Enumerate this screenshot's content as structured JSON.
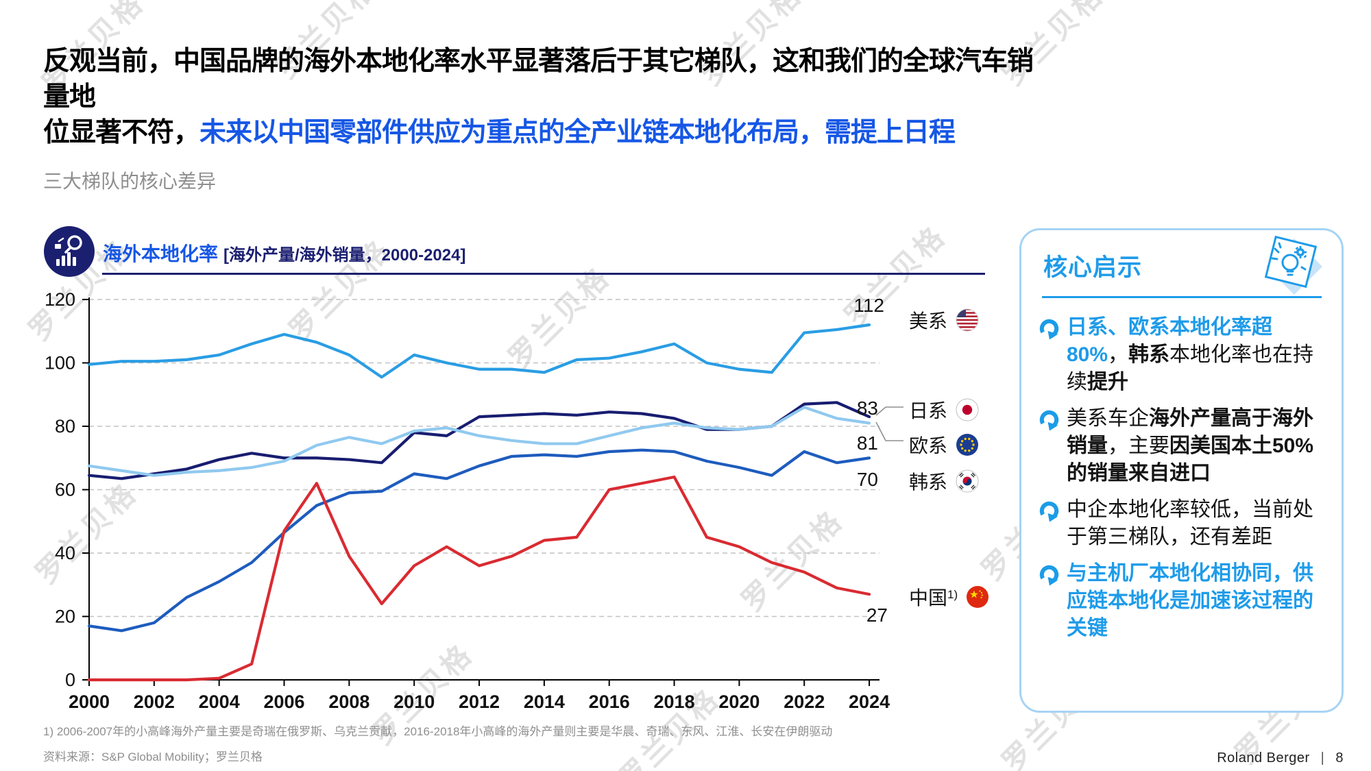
{
  "slide": {
    "title_black_line1": "反观当前，中国品牌的海外本地化率水平显著落后于其它梯队，这和我们的全球汽车销量地",
    "title_black_line2": "位显著不符，",
    "title_blue": "未来以中国零部件供应为重点的全产业链本地化布局，需提上日程",
    "subtitle": "三大梯队的核心差异",
    "watermark": "罗兰贝格",
    "footnote": "1) 2006-2007年的小高峰海外产量主要是奇瑞在俄罗斯、乌克兰贡献，2016-2018年小高峰的海外产量则主要是华晨、奇瑞、东风、江淮、长安在伊朗驱动",
    "source": "资料来源：S&P Global Mobility；罗兰贝格",
    "footer_brand": "Roland Berger",
    "footer_separator": "|",
    "footer_page": "8"
  },
  "chart_header": {
    "title": "海外本地化率",
    "bracket": "[海外产量/海外销量，2000-2024]"
  },
  "chart_data": {
    "type": "line",
    "title": "海外本地化率 [海外产量/海外销量，2000-2024]",
    "xlabel": "",
    "ylabel": "",
    "ylim": [
      0,
      120
    ],
    "yticks": [
      0,
      20,
      40,
      60,
      80,
      100,
      120
    ],
    "grid": "horizontal-dashed",
    "legend_position": "right-of-lines",
    "x": [
      2000,
      2001,
      2002,
      2003,
      2004,
      2005,
      2006,
      2007,
      2008,
      2009,
      2010,
      2011,
      2012,
      2013,
      2014,
      2015,
      2016,
      2017,
      2018,
      2019,
      2020,
      2021,
      2022,
      2023,
      2024
    ],
    "xtick_labels": [
      2000,
      2002,
      2004,
      2006,
      2008,
      2010,
      2012,
      2014,
      2016,
      2018,
      2020,
      2022,
      2024
    ],
    "series": [
      {
        "id": "us",
        "name": "美系",
        "flag": "united-states",
        "color": "#2A9DE4",
        "end_label": "112",
        "values": [
          99.5,
          100.5,
          100.5,
          101,
          102.5,
          106,
          109,
          106.5,
          102.5,
          95.5,
          102.5,
          100,
          98,
          98,
          97,
          101,
          101.5,
          103.5,
          106,
          100,
          98,
          97,
          109.5,
          110.5,
          112
        ]
      },
      {
        "id": "jp",
        "name": "日系",
        "flag": "japan",
        "color": "#181D70",
        "end_label": "83",
        "values": [
          64.5,
          63.5,
          65,
          66.5,
          69.5,
          71.5,
          70,
          70,
          69.5,
          68.5,
          78,
          77,
          83,
          83.5,
          84,
          83.5,
          84.5,
          84,
          82.5,
          79,
          79,
          80,
          87,
          87.5,
          83
        ]
      },
      {
        "id": "eu",
        "name": "欧系",
        "flag": "european-union",
        "color": "#90C9EF",
        "end_label": "81",
        "values": [
          67.5,
          66,
          64.5,
          65.5,
          66,
          67,
          69,
          74,
          76.5,
          74.5,
          78.5,
          79.5,
          77,
          75.5,
          74.5,
          74.5,
          77,
          79.5,
          81,
          79.5,
          79,
          80,
          86,
          82.5,
          81
        ]
      },
      {
        "id": "kr",
        "name": "韩系",
        "flag": "south-korea",
        "color": "#1E5CBE",
        "end_label": "70",
        "values": [
          17,
          15.5,
          18,
          26,
          31,
          37,
          46.5,
          55,
          59,
          59.5,
          65,
          63.5,
          67.5,
          70.5,
          71,
          70.5,
          72,
          72.5,
          72,
          69,
          67,
          64.5,
          72,
          68.5,
          70
        ]
      },
      {
        "id": "cn",
        "name": "中国",
        "name_superscript": "1)",
        "flag": "china",
        "color": "#D92B32",
        "end_label": "27",
        "values": [
          0,
          0,
          0,
          0,
          0.5,
          5,
          47,
          62,
          39,
          24,
          36,
          42,
          36,
          39,
          44,
          45,
          60,
          62,
          64,
          45,
          42,
          37,
          34,
          29,
          27
        ]
      }
    ]
  },
  "insights": {
    "title": "核心启示",
    "bullets": [
      {
        "segments": [
          {
            "text": "日系、欧系本地化率超80%",
            "style": "blue-bold"
          },
          {
            "text": "，",
            "style": "normal"
          },
          {
            "text": "韩系",
            "style": "bold"
          },
          {
            "text": "本地化率也在持续",
            "style": "normal"
          },
          {
            "text": "提升",
            "style": "bold"
          }
        ]
      },
      {
        "segments": [
          {
            "text": "美系车企",
            "style": "normal"
          },
          {
            "text": "海外产量高于海外销量",
            "style": "bold"
          },
          {
            "text": "，主要",
            "style": "normal"
          },
          {
            "text": "因美国本土50%的销量来自进口",
            "style": "bold"
          }
        ]
      },
      {
        "segments": [
          {
            "text": "中企本地化率较低，当前处于第三梯队，还有差距",
            "style": "normal"
          }
        ]
      },
      {
        "segments": [
          {
            "text": "与主机厂本地化相协同，供应链本地化是加速该过程的关键",
            "style": "blue-bold"
          }
        ]
      }
    ]
  }
}
